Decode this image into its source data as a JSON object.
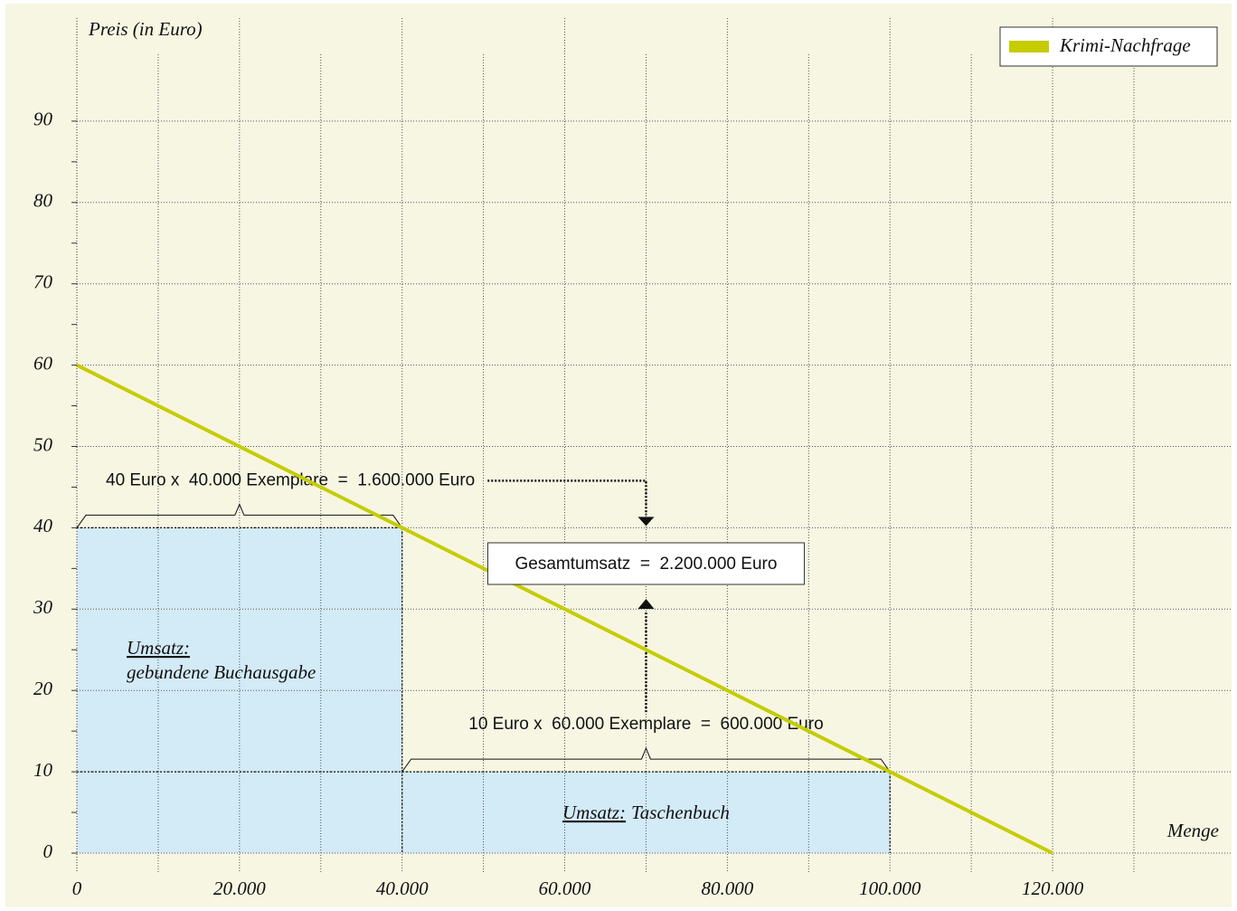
{
  "chart_data": {
    "type": "line",
    "y_label": "Preis (in Euro)",
    "x_label": "Menge",
    "x": [
      0,
      120000
    ],
    "series": [
      {
        "name": "Krimi-Nachfrage",
        "color": "#c5cc00",
        "values": [
          60,
          0
        ]
      }
    ],
    "xlim": [
      0,
      130000
    ],
    "ylim": [
      0,
      100
    ],
    "xticks": [
      0,
      {
        "value": 20000,
        "label": "20.000"
      },
      {
        "value": 40000,
        "label": "40.000"
      },
      {
        "value": 60000,
        "label": "60.000"
      },
      {
        "value": 80000,
        "label": "80.000"
      },
      {
        "value": 100000,
        "label": "100.000"
      },
      {
        "value": 120000,
        "label": "120.000"
      }
    ],
    "xminorticks": [
      10000,
      30000,
      50000,
      70000,
      90000,
      110000,
      130000
    ],
    "yticks": [
      0,
      10,
      20,
      30,
      40,
      50,
      60,
      70,
      80,
      90
    ],
    "grid": true,
    "legend": "upper right",
    "revenue_areas": [
      {
        "x0": 0,
        "x1": 40000,
        "height": 40,
        "color": "#d3eaf7",
        "label": "Umsatz:",
        "sublabel": "gebundene Buchausgabe",
        "annotation": "40 Euro x  40.000 Exemplare  =  1.600.000 Euro"
      },
      {
        "x0": 40000,
        "x1": 100000,
        "height": 10,
        "color": "#d3eaf7",
        "label": "Umsatz:",
        "sublabel": "Taschenbuch",
        "annotation": "10 Euro x  60.000 Exemplare  =  600.000 Euro"
      }
    ],
    "total_x": 70000,
    "total": "Gesamtumsatz  =  2.200.000 Euro"
  }
}
